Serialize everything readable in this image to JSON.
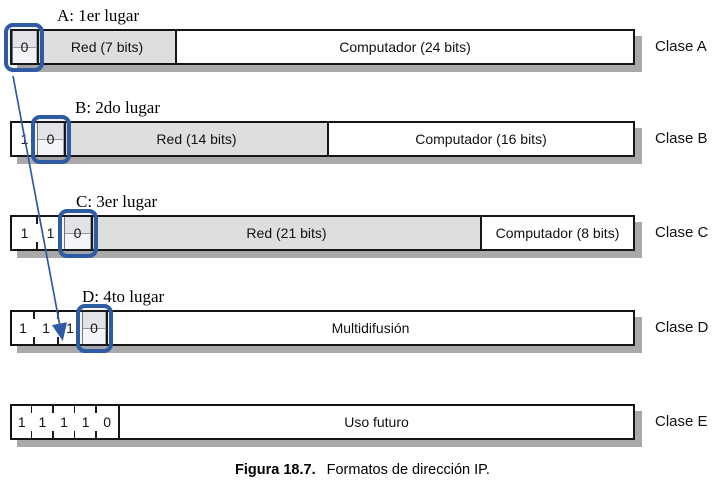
{
  "figure": {
    "caption_bold": "Figura 18.7.",
    "caption_text": "Formatos de dirección IP.",
    "rows": [
      {
        "annotation": "A: 1er lugar",
        "bits": [
          "0"
        ],
        "fields": [
          {
            "label": "Red (7 bits)",
            "shaded": true
          },
          {
            "label": "Computador (24 bits)",
            "shaded": false
          }
        ],
        "class_label": "Clase A",
        "zero_bit_highlighted": true
      },
      {
        "annotation": "B: 2do lugar",
        "bits": [
          "1",
          "0"
        ],
        "fields": [
          {
            "label": "Red (14 bits)",
            "shaded": true
          },
          {
            "label": "Computador (16 bits)",
            "shaded": false
          }
        ],
        "class_label": "Clase B",
        "zero_bit_highlighted": true
      },
      {
        "annotation": "C: 3er lugar",
        "bits": [
          "1",
          "1",
          "0"
        ],
        "fields": [
          {
            "label": "Red (21 bits)",
            "shaded": true
          },
          {
            "label": "Computador (8 bits)",
            "shaded": false
          }
        ],
        "class_label": "Clase C",
        "zero_bit_highlighted": true
      },
      {
        "annotation": "D: 4to lugar",
        "bits": [
          "1",
          "1",
          "1",
          "0"
        ],
        "fields": [
          {
            "label": "Multidifusión",
            "shaded": false
          }
        ],
        "class_label": "Clase D",
        "zero_bit_highlighted": true
      },
      {
        "annotation": "",
        "bits": [
          "1",
          "1",
          "1",
          "1",
          "0"
        ],
        "fields": [
          {
            "label": "Uso futuro",
            "shaded": false
          }
        ],
        "class_label": "Clase E",
        "zero_bit_highlighted": false
      }
    ],
    "colors": {
      "annotation_blue": "#2e5ba1",
      "field_shaded_gray": "#dedede",
      "bar_shadow_gray": "#a9a9a9"
    }
  }
}
